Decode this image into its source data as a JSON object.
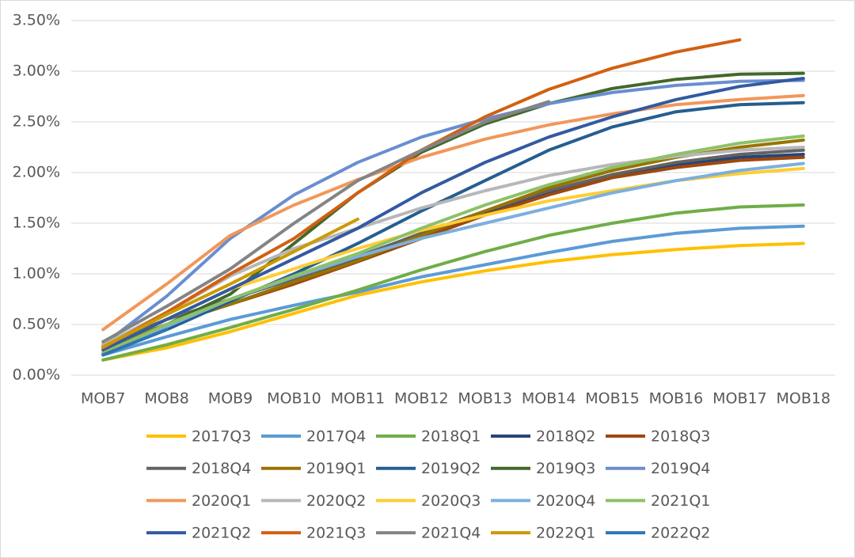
{
  "chart_data": {
    "type": "line",
    "categories": [
      "MOB7",
      "MOB8",
      "MOB9",
      "MOB10",
      "MOB11",
      "MOB12",
      "MOB13",
      "MOB14",
      "MOB15",
      "MOB16",
      "MOB17",
      "MOB18"
    ],
    "ylim": [
      0,
      3.5
    ],
    "yticks": [
      {
        "value": 0,
        "label": "0.00%"
      },
      {
        "value": 0.5,
        "label": "0.50%"
      },
      {
        "value": 1,
        "label": "1.00%"
      },
      {
        "value": 1.5,
        "label": "1.50%"
      },
      {
        "value": 2,
        "label": "2.00%"
      },
      {
        "value": 2.5,
        "label": "2.50%"
      },
      {
        "value": 3,
        "label": "3.00%"
      },
      {
        "value": 3.5,
        "label": "3.50%"
      }
    ],
    "grid": true,
    "legend": "bottom",
    "series": [
      {
        "name": "2017Q3",
        "color": "#FFC000",
        "values": [
          0.15,
          0.27,
          0.43,
          0.61,
          0.79,
          0.92,
          1.03,
          1.12,
          1.19,
          1.24,
          1.28,
          1.3
        ]
      },
      {
        "name": "2017Q4",
        "color": "#5B9BD5",
        "values": [
          0.2,
          0.38,
          0.55,
          0.69,
          0.82,
          0.97,
          1.09,
          1.21,
          1.32,
          1.4,
          1.45,
          1.47
        ]
      },
      {
        "name": "2018Q1",
        "color": "#70AD47",
        "values": [
          0.15,
          0.3,
          0.47,
          0.65,
          0.84,
          1.04,
          1.22,
          1.38,
          1.5,
          1.6,
          1.66,
          1.68
        ]
      },
      {
        "name": "2018Q2",
        "color": "#264478",
        "values": [
          0.25,
          0.5,
          0.7,
          0.92,
          1.14,
          1.38,
          1.6,
          1.8,
          1.97,
          2.08,
          2.15,
          2.18
        ]
      },
      {
        "name": "2018Q3",
        "color": "#9E480E",
        "values": [
          0.25,
          0.5,
          0.7,
          0.9,
          1.12,
          1.35,
          1.58,
          1.78,
          1.95,
          2.05,
          2.12,
          2.15
        ]
      },
      {
        "name": "2018Q4",
        "color": "#636363",
        "values": [
          0.3,
          0.55,
          0.75,
          0.95,
          1.17,
          1.4,
          1.62,
          1.82,
          1.98,
          2.1,
          2.18,
          2.22
        ]
      },
      {
        "name": "2019Q1",
        "color": "#997300",
        "values": [
          0.28,
          0.5,
          0.7,
          0.92,
          1.13,
          1.38,
          1.62,
          1.85,
          2.02,
          2.15,
          2.25,
          2.32
        ]
      },
      {
        "name": "2019Q2",
        "color": "#255E91",
        "values": [
          0.2,
          0.45,
          0.73,
          1.0,
          1.3,
          1.62,
          1.92,
          2.22,
          2.45,
          2.6,
          2.67,
          2.69
        ]
      },
      {
        "name": "2019Q3",
        "color": "#43682B",
        "values": [
          0.22,
          0.5,
          0.8,
          1.3,
          1.8,
          2.2,
          2.48,
          2.68,
          2.83,
          2.92,
          2.97,
          2.98
        ]
      },
      {
        "name": "2019Q4",
        "color": "#698ED0",
        "values": [
          0.3,
          0.78,
          1.35,
          1.78,
          2.1,
          2.35,
          2.53,
          2.68,
          2.79,
          2.86,
          2.9,
          2.91
        ]
      },
      {
        "name": "2020Q1",
        "color": "#F1975A",
        "values": [
          0.45,
          0.9,
          1.38,
          1.68,
          1.93,
          2.15,
          2.33,
          2.47,
          2.58,
          2.67,
          2.72,
          2.76
        ]
      },
      {
        "name": "2020Q2",
        "color": "#B7B7B7",
        "values": [
          0.3,
          0.62,
          0.98,
          1.25,
          1.45,
          1.65,
          1.82,
          1.97,
          2.08,
          2.16,
          2.22,
          2.25
        ]
      },
      {
        "name": "2020Q3",
        "color": "#FFCD33",
        "values": [
          0.25,
          0.55,
          0.85,
          1.05,
          1.25,
          1.43,
          1.58,
          1.72,
          1.82,
          1.92,
          1.99,
          2.04
        ]
      },
      {
        "name": "2020Q4",
        "color": "#7CAFDD",
        "values": [
          0.22,
          0.48,
          0.75,
          0.97,
          1.17,
          1.35,
          1.5,
          1.65,
          1.8,
          1.92,
          2.02,
          2.09
        ]
      },
      {
        "name": "2021Q1",
        "color": "#8CC168",
        "values": [
          0.22,
          0.5,
          0.75,
          0.98,
          1.2,
          1.45,
          1.68,
          1.88,
          2.05,
          2.18,
          2.29,
          2.36
        ]
      },
      {
        "name": "2021Q2",
        "color": "#335AA1",
        "values": [
          0.25,
          0.55,
          0.85,
          1.15,
          1.45,
          1.8,
          2.1,
          2.35,
          2.55,
          2.72,
          2.85,
          2.93
        ]
      },
      {
        "name": "2021Q3",
        "color": "#D26012",
        "values": [
          0.27,
          0.62,
          1.0,
          1.35,
          1.8,
          2.22,
          2.55,
          2.82,
          3.03,
          3.19,
          3.31,
          null
        ]
      },
      {
        "name": "2021Q4",
        "color": "#848484",
        "values": [
          0.33,
          0.68,
          1.05,
          1.5,
          1.92,
          2.22,
          2.5,
          2.7,
          null,
          null,
          null,
          null
        ]
      },
      {
        "name": "2022Q1",
        "color": "#CC9A00",
        "values": [
          0.28,
          0.6,
          0.9,
          1.22,
          1.54,
          null,
          null,
          null,
          null,
          null,
          null,
          null
        ]
      },
      {
        "name": "2022Q2",
        "color": "#2E75B6",
        "values": [
          0.2,
          0.45,
          null,
          null,
          null,
          null,
          null,
          null,
          null,
          null,
          null,
          null
        ]
      }
    ]
  }
}
